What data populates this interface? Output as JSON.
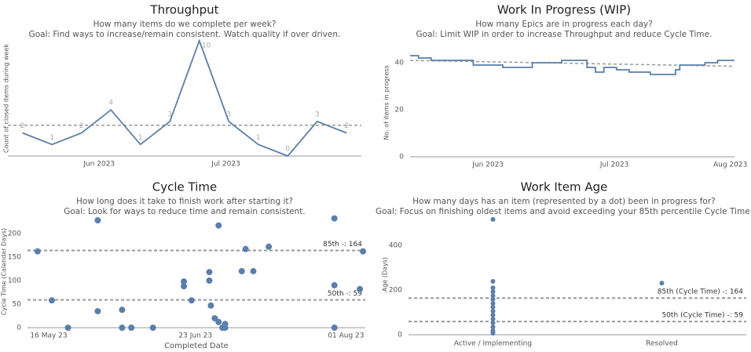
{
  "chart_data": [
    {
      "type": "line",
      "title": "Throughput",
      "subtitle": [
        "How many items do we complete per week?",
        "Goal: Find ways to increase/remain consistent. Watch quality if over driven."
      ],
      "y_label": "Count of closed items during week",
      "categories": [
        null,
        null,
        null,
        null,
        null,
        null,
        null,
        null,
        null,
        null,
        null,
        null
      ],
      "values": [
        2,
        1,
        2,
        4,
        1,
        3,
        10,
        3,
        1,
        0,
        3,
        2
      ],
      "average": 2.67,
      "color": "#5b7fa6",
      "ylim": [
        0,
        10
      ],
      "xticks": [
        {
          "value": 2.6,
          "label": "Jun 2023"
        },
        {
          "value": 6.9,
          "label": "Jul 2023"
        }
      ]
    },
    {
      "type": "step",
      "title": "Work In Progress (WIP)",
      "subtitle": [
        "How many Epics are in progress each day?",
        "Goal: Limit WIP in order to increase Throughput and reduce Cycle Time."
      ],
      "y_label": "No. of items in progress",
      "categories": [
        null,
        null,
        null,
        null,
        null,
        null,
        null,
        null,
        null,
        null,
        null,
        null,
        null,
        null,
        null,
        null,
        null,
        null,
        null,
        null,
        null,
        null,
        null,
        null,
        null,
        null,
        null,
        null,
        null,
        null,
        null,
        null,
        null,
        null,
        null,
        null,
        null,
        null,
        null,
        null,
        null,
        null,
        null,
        null,
        null,
        null,
        null,
        null,
        null,
        null,
        null,
        null,
        null,
        null,
        null,
        null,
        null,
        null,
        null,
        null,
        null,
        null,
        null,
        null,
        null,
        null,
        null,
        null,
        null,
        null,
        null,
        null,
        null,
        null,
        null,
        null,
        null
      ],
      "values": [
        43,
        43,
        42,
        42,
        42,
        41,
        41,
        41,
        41,
        41,
        41,
        41,
        41,
        41,
        41,
        39,
        39,
        39,
        39,
        39,
        39,
        39,
        38,
        38,
        38,
        38,
        38,
        38,
        38,
        40,
        40,
        40,
        40,
        40,
        40,
        40,
        41,
        41,
        41,
        41,
        41,
        41,
        38,
        38,
        36,
        36,
        38,
        38,
        38,
        37,
        37,
        37,
        36,
        36,
        36,
        36,
        36,
        35,
        35,
        35,
        35,
        35,
        35,
        37,
        39,
        39,
        39,
        39,
        39,
        39,
        40,
        40,
        40,
        41,
        41,
        41,
        41
      ],
      "trend": [
        41,
        38.5
      ],
      "color": "#5b7fa6",
      "ylim": [
        0,
        46
      ],
      "yticks": [
        0,
        20,
        40
      ],
      "xticks": [
        {
          "value": 18,
          "label": "Jun 2023"
        },
        {
          "value": 48,
          "label": "Jul 2023"
        },
        {
          "value": 75.5,
          "label": "Aug 2023"
        }
      ]
    },
    {
      "type": "scatter",
      "title": "Cycle Time",
      "subtitle": [
        "How long does it take to finish work after starting it?",
        "Goal: Look for ways to reduce time and remain consistent."
      ],
      "y_label": "Cycle Time (Calendar Days)",
      "x_label": "Completed Date",
      "x": [
        -2.9,
        0.8,
        5,
        12.7,
        12.7,
        19,
        19,
        21.4,
        27,
        35,
        35,
        37,
        41.6,
        41.6,
        42,
        43,
        44,
        44,
        45,
        45.7,
        45.7,
        50,
        51,
        53,
        57,
        74,
        74,
        74,
        80.6,
        81.4
      ],
      "values": [
        162,
        58,
        0,
        228,
        35,
        38,
        0,
        0,
        0,
        98,
        88,
        58,
        118,
        100,
        47,
        20,
        217,
        12,
        0,
        8,
        0,
        120,
        167,
        120,
        172,
        232,
        90,
        0,
        82,
        162
      ],
      "reference_lines": [
        {
          "value": 164,
          "label": "85th -: 164"
        },
        {
          "value": 59,
          "label": "50th -: 59"
        }
      ],
      "color": "#5a7fab",
      "xlim": [
        -5.5,
        82
      ],
      "ylim": [
        0,
        238
      ],
      "yticks": [
        0,
        50,
        100,
        150,
        200
      ],
      "xticks": [
        {
          "value": 0,
          "label": "16 May 23"
        },
        {
          "value": 38,
          "label": "23 Jun 23"
        },
        {
          "value": 77,
          "label": "01 Aug 23"
        }
      ]
    },
    {
      "type": "strip",
      "title": "Work Item Age",
      "subtitle": [
        "How many days has an item (represented by a dot) been in progress for?",
        "Goal: Focus on finishing oldest items and avoid exceeding your 85th percentile Cycle Time."
      ],
      "y_label": "Age (Days)",
      "categories": [
        "Active / Implementing",
        "Resolved"
      ],
      "values": [
        [
          516,
          239,
          210,
          193,
          175,
          158,
          140,
          123,
          105,
          88,
          70,
          53,
          35,
          18,
          7
        ],
        [
          231
        ]
      ],
      "reference_lines": [
        {
          "value": 164,
          "label": "85th (Cycle Time) -: 164"
        },
        {
          "value": 59,
          "label": "50th (Cycle Time) -: 59"
        }
      ],
      "color": "#5a7fab",
      "ylim": [
        0,
        540
      ],
      "yticks": [
        0,
        200,
        400
      ]
    }
  ]
}
